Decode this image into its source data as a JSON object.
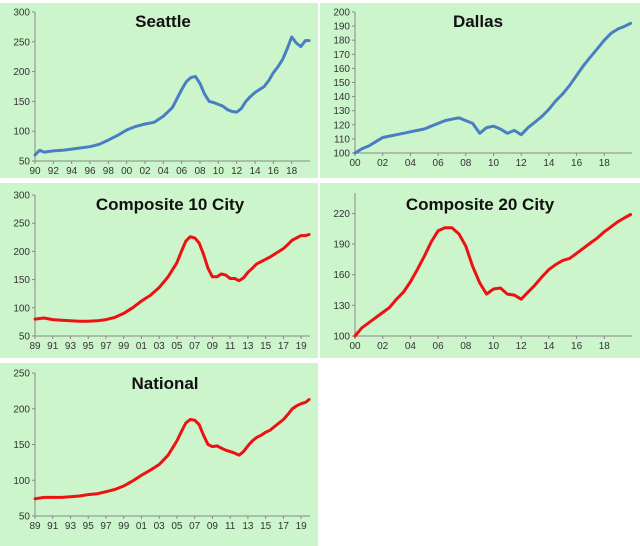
{
  "colors": {
    "panel_bg": "#ccf5cc",
    "blue": "#4a7ec2",
    "red": "#ee1111",
    "axis": "#888888"
  },
  "chart_data": [
    {
      "type": "line",
      "title": "Seattle",
      "color": "blue",
      "xlim": [
        1990,
        2020
      ],
      "ylim": [
        50,
        300
      ],
      "yticks": [
        "50",
        "100",
        "150",
        "200",
        "250",
        "300"
      ],
      "xtick_years": [
        1990,
        1992,
        1994,
        1996,
        1998,
        2000,
        2002,
        2004,
        2006,
        2008,
        2010,
        2012,
        2014,
        2016,
        2018
      ],
      "xticks": [
        "90",
        "92",
        "94",
        "96",
        "98",
        "00",
        "02",
        "04",
        "06",
        "08",
        "10",
        "12",
        "14",
        "16",
        "18"
      ],
      "x": [
        1990,
        1990.5,
        1991,
        1992,
        1993,
        1994,
        1995,
        1996,
        1997,
        1998,
        1999,
        2000,
        2001,
        2002,
        2003,
        2004,
        2005,
        2005.5,
        2006,
        2006.5,
        2007,
        2007.5,
        2008,
        2008.5,
        2009,
        2009.5,
        2010,
        2010.5,
        2011,
        2011.5,
        2012,
        2012.5,
        2013,
        2013.5,
        2014,
        2014.5,
        2015,
        2015.5,
        2016,
        2016.5,
        2017,
        2017.5,
        2018,
        2018.5,
        2019,
        2019.5,
        2019.9
      ],
      "y": [
        60,
        68,
        65,
        67,
        68,
        70,
        72,
        74,
        78,
        85,
        93,
        102,
        108,
        112,
        115,
        125,
        140,
        155,
        170,
        183,
        190,
        192,
        180,
        162,
        150,
        148,
        145,
        142,
        136,
        133,
        132,
        138,
        150,
        158,
        165,
        170,
        175,
        185,
        198,
        208,
        220,
        238,
        258,
        248,
        242,
        252,
        252
      ]
    },
    {
      "type": "line",
      "title": "Dallas",
      "color": "blue",
      "xlim": [
        2000,
        2020
      ],
      "ylim": [
        100,
        200
      ],
      "yticks": [
        "100",
        "110",
        "120",
        "130",
        "140",
        "150",
        "160",
        "170",
        "180",
        "190",
        "200"
      ],
      "xtick_years": [
        2000,
        2002,
        2004,
        2006,
        2008,
        2010,
        2012,
        2014,
        2016,
        2018
      ],
      "xticks": [
        "00",
        "02",
        "04",
        "06",
        "08",
        "10",
        "12",
        "14",
        "16",
        "18"
      ],
      "x": [
        2000,
        2000.5,
        2001,
        2001.5,
        2002,
        2002.5,
        2003,
        2003.5,
        2004,
        2004.5,
        2005,
        2005.5,
        2006,
        2006.5,
        2007,
        2007.5,
        2008,
        2008.5,
        2009,
        2009.5,
        2010,
        2010.5,
        2011,
        2011.5,
        2012,
        2012.5,
        2013,
        2013.5,
        2014,
        2014.5,
        2015,
        2015.5,
        2016,
        2016.5,
        2017,
        2017.5,
        2018,
        2018.5,
        2019,
        2019.5,
        2019.9
      ],
      "y": [
        100,
        103,
        105,
        108,
        111,
        112,
        113,
        114,
        115,
        116,
        117,
        119,
        121,
        123,
        124,
        125,
        123,
        121,
        114,
        118,
        119,
        117,
        114,
        116,
        113,
        118,
        122,
        126,
        131,
        137,
        142,
        148,
        155,
        162,
        168,
        174,
        180,
        185,
        188,
        190,
        192
      ]
    },
    {
      "type": "line",
      "title": "Composite 10 City",
      "color": "red",
      "xlim": [
        1989,
        2020
      ],
      "ylim": [
        50,
        300
      ],
      "yticks": [
        "50",
        "100",
        "150",
        "200",
        "250",
        "300"
      ],
      "xtick_years": [
        1989,
        1991,
        1993,
        1995,
        1997,
        1999,
        2001,
        2003,
        2005,
        2007,
        2009,
        2011,
        2013,
        2015,
        2017,
        2019
      ],
      "xticks": [
        "89",
        "91",
        "93",
        "95",
        "97",
        "99",
        "01",
        "03",
        "05",
        "07",
        "09",
        "11",
        "13",
        "15",
        "17",
        "19"
      ],
      "x": [
        1989,
        1990,
        1991,
        1992,
        1993,
        1994,
        1995,
        1996,
        1997,
        1998,
        1999,
        2000,
        2001,
        2002,
        2003,
        2004,
        2005,
        2005.5,
        2006,
        2006.5,
        2007,
        2007.5,
        2008,
        2008.5,
        2009,
        2009.5,
        2010,
        2010.5,
        2011,
        2011.5,
        2012,
        2012.5,
        2013,
        2013.5,
        2014,
        2014.5,
        2015,
        2015.5,
        2016,
        2016.5,
        2017,
        2017.5,
        2018,
        2018.5,
        2019,
        2019.5,
        2019.9
      ],
      "y": [
        80,
        82,
        79,
        78,
        77,
        76,
        76,
        77,
        79,
        83,
        90,
        100,
        112,
        122,
        136,
        155,
        180,
        200,
        218,
        226,
        224,
        215,
        195,
        170,
        155,
        155,
        160,
        158,
        152,
        152,
        148,
        153,
        163,
        170,
        178,
        182,
        186,
        190,
        195,
        200,
        205,
        212,
        220,
        224,
        228,
        228,
        230
      ]
    },
    {
      "type": "line",
      "title": "Composite 20 City",
      "color": "red",
      "xlim": [
        2000,
        2020
      ],
      "ylim": [
        100,
        240
      ],
      "yticks": [
        "100",
        "130",
        "160",
        "190",
        "220"
      ],
      "ytick_values": [
        100,
        130,
        160,
        190,
        220
      ],
      "xtick_years": [
        2000,
        2002,
        2004,
        2006,
        2008,
        2010,
        2012,
        2014,
        2016,
        2018
      ],
      "xticks": [
        "00",
        "02",
        "04",
        "06",
        "08",
        "10",
        "12",
        "14",
        "16",
        "18"
      ],
      "x": [
        2000,
        2000.5,
        2001,
        2001.5,
        2002,
        2002.5,
        2003,
        2003.5,
        2004,
        2004.5,
        2005,
        2005.5,
        2006,
        2006.5,
        2007,
        2007.5,
        2008,
        2008.5,
        2009,
        2009.5,
        2010,
        2010.5,
        2011,
        2011.5,
        2012,
        2012.5,
        2013,
        2013.5,
        2014,
        2014.5,
        2015,
        2015.5,
        2016,
        2016.5,
        2017,
        2017.5,
        2018,
        2018.5,
        2019,
        2019.5,
        2019.9
      ],
      "y": [
        100,
        108,
        113,
        118,
        123,
        128,
        136,
        143,
        153,
        165,
        178,
        192,
        203,
        206,
        206,
        200,
        188,
        168,
        152,
        141,
        146,
        147,
        141,
        140,
        136,
        143,
        150,
        158,
        165,
        170,
        174,
        176,
        181,
        186,
        191,
        196,
        202,
        207,
        212,
        216,
        219
      ]
    },
    {
      "type": "line",
      "title": "National",
      "color": "red",
      "xlim": [
        1989,
        2020
      ],
      "ylim": [
        50,
        250
      ],
      "yticks": [
        "50",
        "100",
        "150",
        "200",
        "250"
      ],
      "xtick_years": [
        1989,
        1991,
        1993,
        1995,
        1997,
        1999,
        2001,
        2003,
        2005,
        2007,
        2009,
        2011,
        2013,
        2015,
        2017,
        2019
      ],
      "xticks": [
        "89",
        "91",
        "93",
        "95",
        "97",
        "99",
        "01",
        "03",
        "05",
        "07",
        "09",
        "11",
        "13",
        "15",
        "17",
        "19"
      ],
      "x": [
        1989,
        1990,
        1991,
        1992,
        1993,
        1994,
        1995,
        1996,
        1997,
        1998,
        1999,
        2000,
        2001,
        2002,
        2003,
        2004,
        2005,
        2005.5,
        2006,
        2006.5,
        2007,
        2007.5,
        2008,
        2008.5,
        2009,
        2009.5,
        2010,
        2010.5,
        2011,
        2011.5,
        2012,
        2012.5,
        2013,
        2013.5,
        2014,
        2014.5,
        2015,
        2015.5,
        2016,
        2016.5,
        2017,
        2017.5,
        2018,
        2018.5,
        2019,
        2019.5,
        2019.9
      ],
      "y": [
        74,
        76,
        76,
        76,
        77,
        78,
        80,
        81,
        84,
        87,
        92,
        99,
        107,
        114,
        122,
        135,
        155,
        168,
        180,
        185,
        184,
        178,
        163,
        150,
        147,
        148,
        145,
        142,
        140,
        138,
        135,
        140,
        148,
        155,
        160,
        163,
        167,
        170,
        175,
        180,
        185,
        192,
        200,
        204,
        207,
        209,
        213
      ]
    }
  ]
}
